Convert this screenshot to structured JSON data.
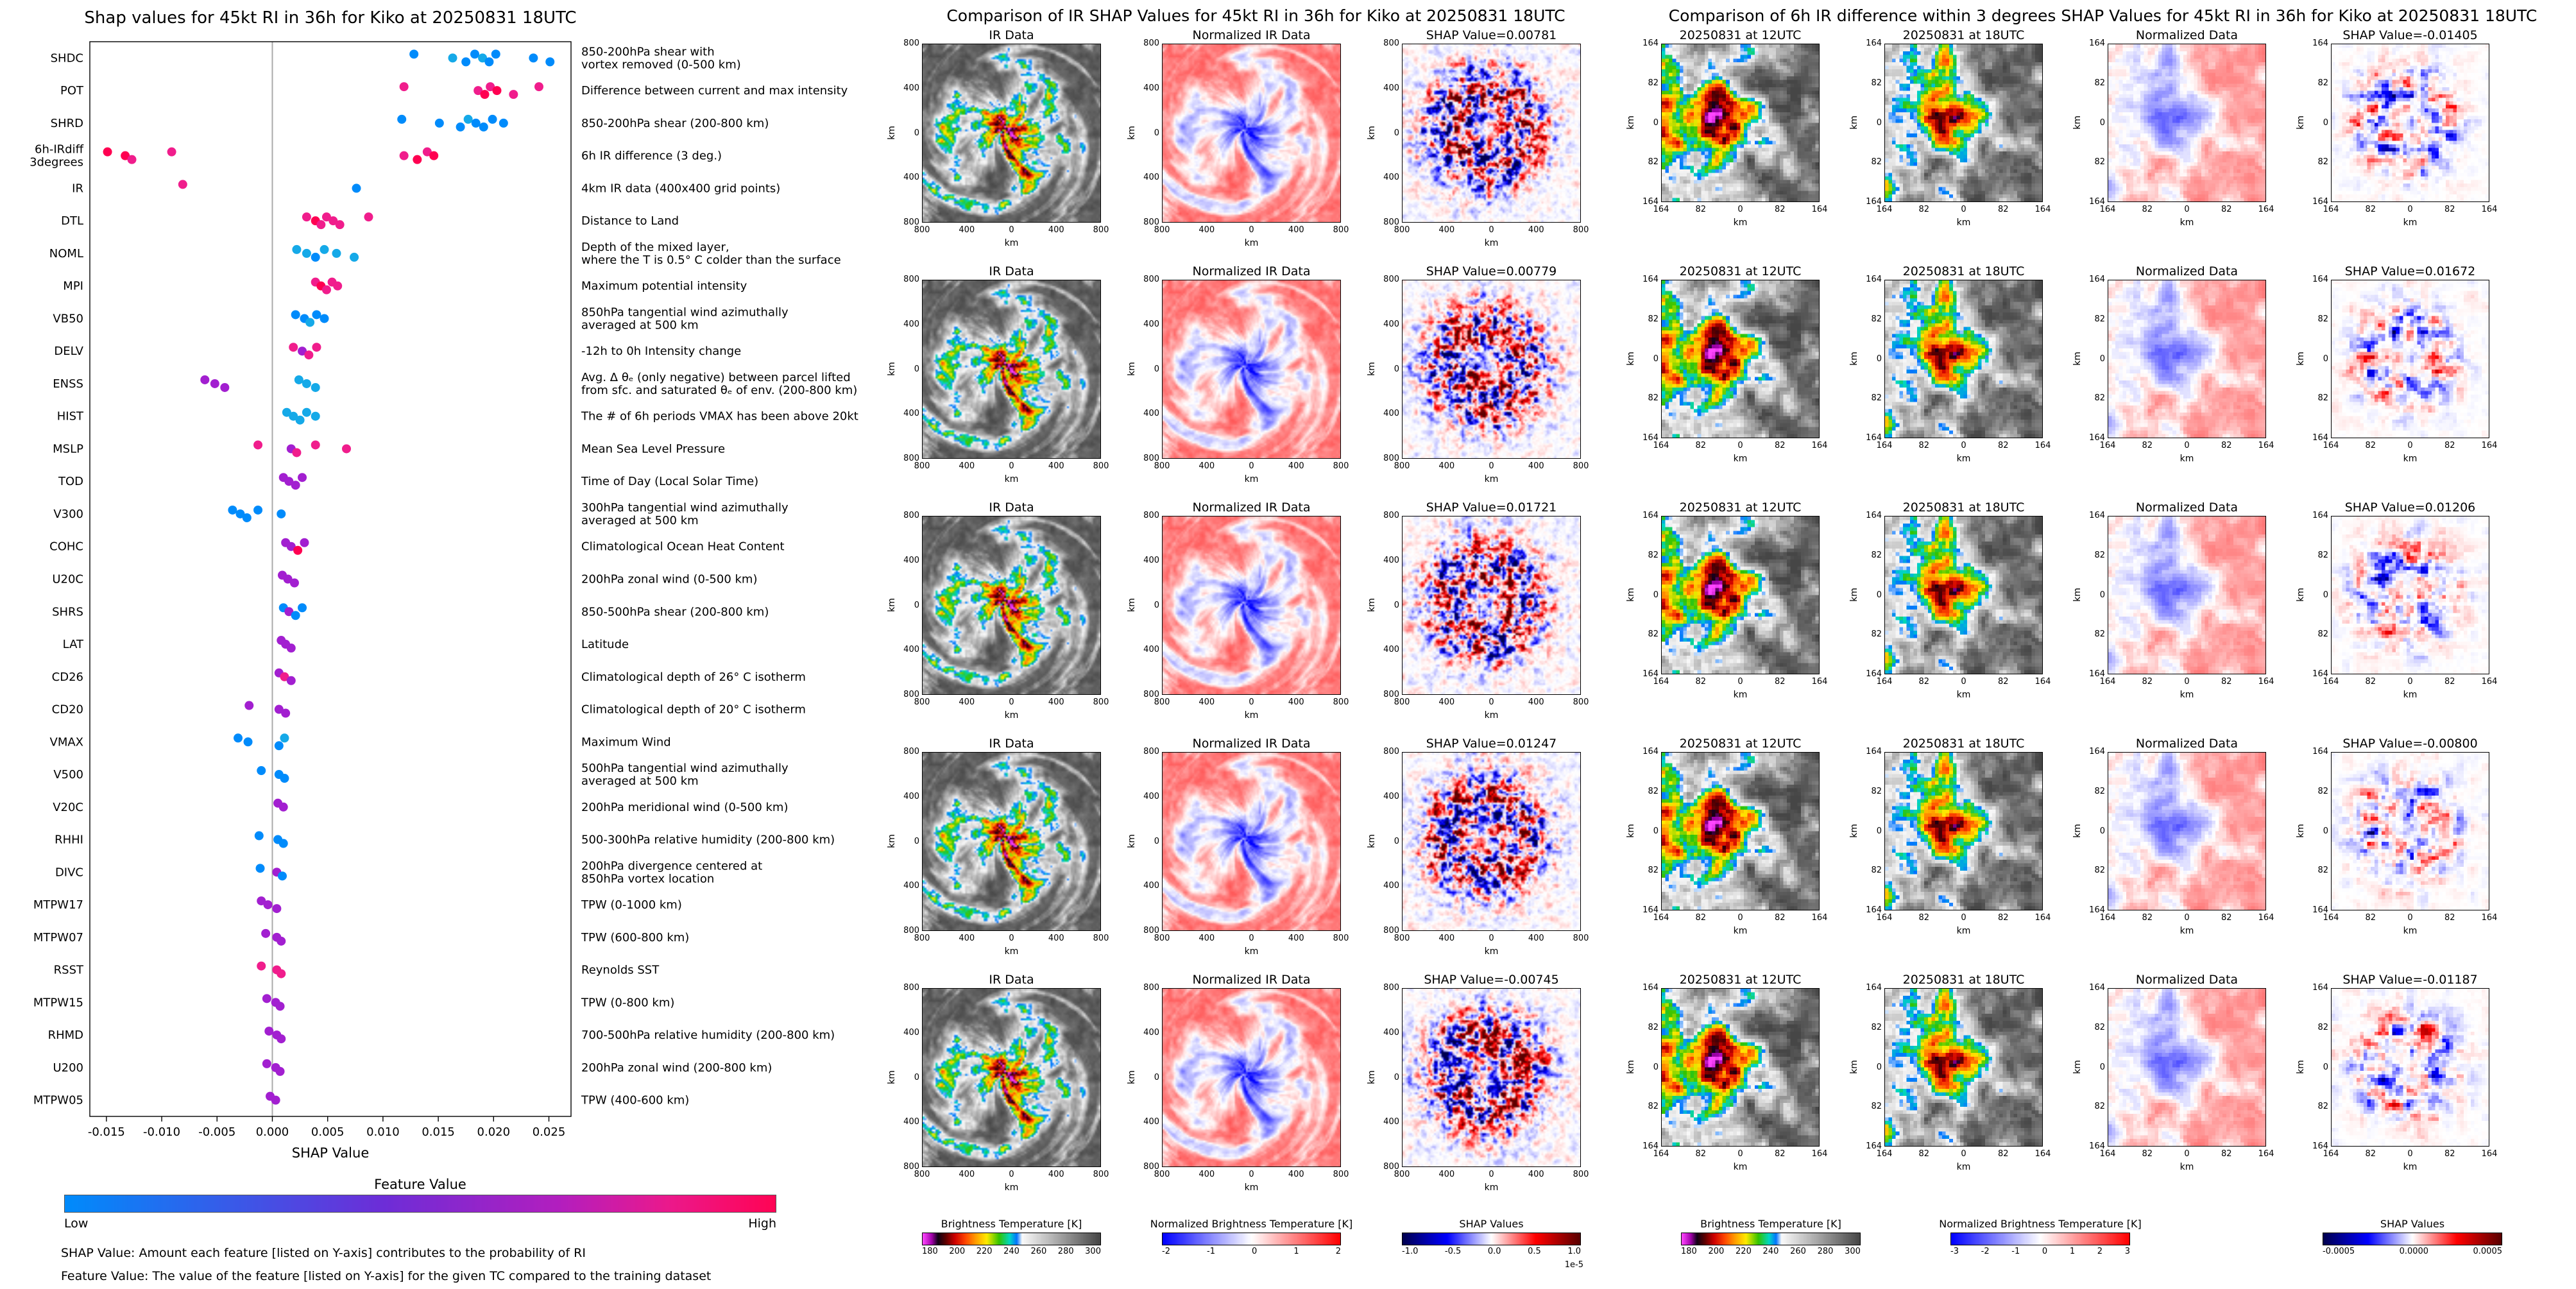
{
  "palette": {
    "b": "#008bfb",
    "c": "#15a9e8",
    "m": "#a21fd0",
    "p": "#f01d8c",
    "r": "#ff0051"
  },
  "chart_data": [
    {
      "type": "scatter",
      "subtype": "shap-beeswarm",
      "title": "Shap values for 45kt RI in 36h for Kiko at 20250831 18UTC",
      "xlabel": "SHAP Value",
      "xlim": [
        -0.0165,
        0.027
      ],
      "x_ticks": [
        "-0.015",
        "-0.010",
        "-0.005",
        "0.000",
        "0.005",
        "0.010",
        "0.015",
        "0.020",
        "0.025"
      ],
      "colorbar": {
        "title": "Feature Value",
        "low_label": "Low",
        "high_label": "High"
      },
      "footnotes": [
        "SHAP Value: Amount each feature [listed on Y-axis] contributes to the probability of RI",
        "Feature Value: The value of the feature [listed on Y-axis] for the given TC compared to the training dataset"
      ],
      "features": [
        {
          "name": "SHDC",
          "desc": "850-200hPa shear with\nvortex removed (0-500 km)",
          "points": [
            [
              0.0128,
              "b"
            ],
            [
              0.0163,
              "c"
            ],
            [
              0.0175,
              "b"
            ],
            [
              0.0183,
              "b"
            ],
            [
              0.019,
              "c"
            ],
            [
              0.0196,
              "b"
            ],
            [
              0.0202,
              "b"
            ],
            [
              0.0236,
              "b"
            ],
            [
              0.0251,
              "b"
            ]
          ]
        },
        {
          "name": "POT",
          "desc": "Difference between current and max intensity",
          "points": [
            [
              0.0119,
              "p"
            ],
            [
              0.0186,
              "p"
            ],
            [
              0.0192,
              "r"
            ],
            [
              0.0197,
              "p"
            ],
            [
              0.0203,
              "r"
            ],
            [
              0.0218,
              "p"
            ],
            [
              0.0241,
              "p"
            ]
          ]
        },
        {
          "name": "SHRD",
          "desc": "850-200hPa shear (200-800 km)",
          "points": [
            [
              0.0117,
              "b"
            ],
            [
              0.0151,
              "b"
            ],
            [
              0.017,
              "b"
            ],
            [
              0.0177,
              "c"
            ],
            [
              0.0184,
              "b"
            ],
            [
              0.0191,
              "b"
            ],
            [
              0.0199,
              "b"
            ],
            [
              0.0209,
              "b"
            ]
          ]
        },
        {
          "name": "6h-IRdiff\n3degrees",
          "desc": "6h IR difference (3 deg.)",
          "points": [
            [
              -0.0149,
              "r"
            ],
            [
              -0.0133,
              "r"
            ],
            [
              -0.0127,
              "p"
            ],
            [
              -0.0091,
              "p"
            ],
            [
              0.0119,
              "p"
            ],
            [
              0.0131,
              "r"
            ],
            [
              0.014,
              "p"
            ],
            [
              0.0146,
              "r"
            ]
          ]
        },
        {
          "name": "IR",
          "desc": "4km IR data (400x400 grid points)",
          "points": [
            [
              -0.0081,
              "p"
            ],
            [
              0.0076,
              "b"
            ]
          ]
        },
        {
          "name": "DTL",
          "desc": "Distance to Land",
          "points": [
            [
              0.0031,
              "p"
            ],
            [
              0.0039,
              "r"
            ],
            [
              0.0044,
              "p"
            ],
            [
              0.0049,
              "p"
            ],
            [
              0.0055,
              "p"
            ],
            [
              0.0061,
              "p"
            ],
            [
              0.0087,
              "p"
            ]
          ]
        },
        {
          "name": "NOML",
          "desc": "Depth of the mixed layer,\nwhere the T is 0.5° C colder than the surface",
          "points": [
            [
              0.0022,
              "c"
            ],
            [
              0.0031,
              "c"
            ],
            [
              0.0039,
              "b"
            ],
            [
              0.0047,
              "c"
            ],
            [
              0.0058,
              "c"
            ],
            [
              0.0074,
              "c"
            ]
          ]
        },
        {
          "name": "MPI",
          "desc": "Maximum potential intensity",
          "points": [
            [
              0.0039,
              "p"
            ],
            [
              0.0044,
              "r"
            ],
            [
              0.0049,
              "p"
            ],
            [
              0.0054,
              "p"
            ],
            [
              0.0059,
              "p"
            ]
          ]
        },
        {
          "name": "VB50",
          "desc": "850hPa tangential wind azimuthally\naveraged at 500 km",
          "points": [
            [
              0.0021,
              "b"
            ],
            [
              0.0029,
              "b"
            ],
            [
              0.0034,
              "c"
            ],
            [
              0.004,
              "b"
            ],
            [
              0.0047,
              "b"
            ]
          ]
        },
        {
          "name": "DELV",
          "desc": "-12h to 0h Intensity change",
          "points": [
            [
              0.0019,
              "p"
            ],
            [
              0.0027,
              "m"
            ],
            [
              0.0033,
              "p"
            ],
            [
              0.004,
              "p"
            ]
          ]
        },
        {
          "name": "ENSS",
          "desc": "Avg. Δ θₑ (only negative) between parcel lifted\nfrom sfc. and saturated θₑ of env. (200-800 km)",
          "points": [
            [
              -0.0061,
              "m"
            ],
            [
              -0.0052,
              "m"
            ],
            [
              -0.0043,
              "m"
            ],
            [
              0.0024,
              "c"
            ],
            [
              0.0031,
              "c"
            ],
            [
              0.0039,
              "c"
            ]
          ]
        },
        {
          "name": "HIST",
          "desc": "The # of 6h periods VMAX has been above 20kt",
          "points": [
            [
              0.0013,
              "c"
            ],
            [
              0.0019,
              "c"
            ],
            [
              0.0025,
              "c"
            ],
            [
              0.0031,
              "c"
            ],
            [
              0.0039,
              "c"
            ]
          ]
        },
        {
          "name": "MSLP",
          "desc": "Mean Sea Level Pressure",
          "points": [
            [
              -0.0013,
              "p"
            ],
            [
              0.0017,
              "m"
            ],
            [
              0.0022,
              "p"
            ],
            [
              0.0039,
              "p"
            ],
            [
              0.0067,
              "p"
            ]
          ]
        },
        {
          "name": "TOD",
          "desc": "Time of Day (Local Solar Time)",
          "points": [
            [
              0.001,
              "m"
            ],
            [
              0.0015,
              "m"
            ],
            [
              0.0021,
              "m"
            ],
            [
              0.0027,
              "m"
            ]
          ]
        },
        {
          "name": "V300",
          "desc": "300hPa tangential wind azimuthally\naveraged at 500 km",
          "points": [
            [
              -0.0036,
              "b"
            ],
            [
              -0.0029,
              "b"
            ],
            [
              -0.0023,
              "b"
            ],
            [
              -0.0013,
              "b"
            ],
            [
              0.0008,
              "b"
            ]
          ]
        },
        {
          "name": "COHC",
          "desc": "Climatological Ocean Heat Content",
          "points": [
            [
              0.0012,
              "m"
            ],
            [
              0.0017,
              "m"
            ],
            [
              0.0023,
              "r"
            ],
            [
              0.0029,
              "m"
            ]
          ]
        },
        {
          "name": "U20C",
          "desc": "200hPa zonal wind (0-500 km)",
          "points": [
            [
              0.0009,
              "m"
            ],
            [
              0.0014,
              "m"
            ],
            [
              0.002,
              "m"
            ]
          ]
        },
        {
          "name": "SHRS",
          "desc": "850-500hPa shear (200-800 km)",
          "points": [
            [
              0.001,
              "b"
            ],
            [
              0.0015,
              "m"
            ],
            [
              0.0021,
              "b"
            ],
            [
              0.0027,
              "b"
            ]
          ]
        },
        {
          "name": "LAT",
          "desc": "Latitude",
          "points": [
            [
              0.0008,
              "m"
            ],
            [
              0.0012,
              "m"
            ],
            [
              0.0017,
              "m"
            ]
          ]
        },
        {
          "name": "CD26",
          "desc": "Climatological depth of 26° C isotherm",
          "points": [
            [
              0.0006,
              "m"
            ],
            [
              0.0011,
              "p"
            ],
            [
              0.0017,
              "m"
            ]
          ]
        },
        {
          "name": "CD20",
          "desc": "Climatological depth of 20° C isotherm",
          "points": [
            [
              -0.0021,
              "m"
            ],
            [
              0.0006,
              "m"
            ],
            [
              0.0012,
              "m"
            ]
          ]
        },
        {
          "name": "VMAX",
          "desc": "Maximum Wind",
          "points": [
            [
              -0.0031,
              "b"
            ],
            [
              -0.0022,
              "b"
            ],
            [
              0.0006,
              "b"
            ],
            [
              0.0011,
              "c"
            ]
          ]
        },
        {
          "name": "V500",
          "desc": "500hPa tangential wind azimuthally\naveraged at 500 km",
          "points": [
            [
              -0.001,
              "b"
            ],
            [
              0.0006,
              "b"
            ],
            [
              0.0011,
              "b"
            ]
          ]
        },
        {
          "name": "V20C",
          "desc": "200hPa meridional wind (0-500 km)",
          "points": [
            [
              0.0005,
              "m"
            ],
            [
              0.001,
              "m"
            ]
          ]
        },
        {
          "name": "RHHI",
          "desc": "500-300hPa relative humidity (200-800 km)",
          "points": [
            [
              -0.0012,
              "b"
            ],
            [
              0.0005,
              "b"
            ],
            [
              0.001,
              "b"
            ]
          ]
        },
        {
          "name": "DIVC",
          "desc": "200hPa divergence centered at\n850hPa vortex location",
          "points": [
            [
              -0.0011,
              "b"
            ],
            [
              0.0004,
              "m"
            ],
            [
              0.0009,
              "b"
            ]
          ]
        },
        {
          "name": "MTPW17",
          "desc": "TPW (0-1000 km)",
          "points": [
            [
              -0.001,
              "m"
            ],
            [
              -0.0004,
              "m"
            ],
            [
              0.0004,
              "m"
            ]
          ]
        },
        {
          "name": "MTPW07",
          "desc": "TPW (600-800 km)",
          "points": [
            [
              -0.0006,
              "m"
            ],
            [
              0.0004,
              "m"
            ],
            [
              0.0008,
              "m"
            ]
          ]
        },
        {
          "name": "RSST",
          "desc": "Reynolds SST",
          "points": [
            [
              -0.001,
              "p"
            ],
            [
              0.0004,
              "p"
            ],
            [
              0.0008,
              "p"
            ]
          ]
        },
        {
          "name": "MTPW15",
          "desc": "TPW (0-800 km)",
          "points": [
            [
              -0.0005,
              "m"
            ],
            [
              0.0003,
              "m"
            ],
            [
              0.0007,
              "m"
            ]
          ]
        },
        {
          "name": "RHMD",
          "desc": "700-500hPa relative humidity (200-800 km)",
          "points": [
            [
              -0.0003,
              "m"
            ],
            [
              0.0004,
              "m"
            ],
            [
              0.0008,
              "m"
            ]
          ]
        },
        {
          "name": "U200",
          "desc": "200hPa zonal wind (200-800 km)",
          "points": [
            [
              -0.0005,
              "m"
            ],
            [
              0.0003,
              "m"
            ],
            [
              0.0007,
              "m"
            ]
          ]
        },
        {
          "name": "MTPW05",
          "desc": "TPW (400-600 km)",
          "points": [
            [
              -0.0002,
              "m"
            ],
            [
              0.0003,
              "m"
            ]
          ]
        }
      ]
    },
    {
      "type": "heatmap",
      "subtype": "ir-shap-grid",
      "title": "Comparison of IR SHAP Values for 45kt RI in 36h for Kiko at 20250831 18UTC",
      "col_titles": [
        "IR Data",
        "Normalized IR Data"
      ],
      "rows": [
        {
          "shap_title": "SHAP Value=0.00781"
        },
        {
          "shap_title": "SHAP Value=0.00779"
        },
        {
          "shap_title": "SHAP Value=0.01721"
        },
        {
          "shap_title": "SHAP Value=0.01247"
        },
        {
          "shap_title": "SHAP Value=-0.00745"
        }
      ],
      "axis": {
        "ticks": [
          "800",
          "400",
          "0",
          "400",
          "800"
        ],
        "unit": "km"
      },
      "colorbars": [
        {
          "title": "Brightness Temperature [K]",
          "map": "temp",
          "ticks": [
            "180",
            "200",
            "220",
            "240",
            "260",
            "280",
            "300"
          ]
        },
        {
          "title": "Normalized Brightness Temperature [K]",
          "map": "bwr",
          "ticks": [
            "-2",
            "-1",
            "0",
            "1",
            "2"
          ]
        },
        {
          "title": "SHAP Values",
          "map": "seismic",
          "ticks": [
            "-1.0",
            "-0.5",
            "0.0",
            "0.5",
            "1.0"
          ],
          "note": "1e-5"
        }
      ]
    },
    {
      "type": "heatmap",
      "subtype": "irdiff-shap-grid",
      "title": "Comparison of 6h IR difference within 3 degrees SHAP Values for 45kt RI in 36h for Kiko at 20250831 18UTC",
      "col_titles": [
        "20250831 at 12UTC",
        "20250831 at 18UTC",
        "Normalized Data"
      ],
      "rows": [
        {
          "shap_title": "SHAP Value=-0.01405"
        },
        {
          "shap_title": "SHAP Value=0.01672"
        },
        {
          "shap_title": "SHAP Value=0.01206"
        },
        {
          "shap_title": "SHAP Value=-0.00800"
        },
        {
          "shap_title": "SHAP Value=-0.01187"
        }
      ],
      "axis": {
        "ticks": [
          "164",
          "82",
          "0",
          "82",
          "164"
        ],
        "unit": "km"
      },
      "colorbars": [
        {
          "title": "Brightness Temperature [K]",
          "map": "temp",
          "ticks": [
            "180",
            "200",
            "220",
            "240",
            "260",
            "280",
            "300"
          ]
        },
        {
          "title": "Normalized Brightness Temperature [K]",
          "map": "bwr",
          "ticks": [
            "-3",
            "-2",
            "-1",
            "0",
            "1",
            "2",
            "3"
          ]
        },
        {
          "title": "SHAP Values",
          "map": "seismic",
          "ticks": [
            "-0.0005",
            "0.0000",
            "0.0005"
          ]
        }
      ]
    }
  ]
}
